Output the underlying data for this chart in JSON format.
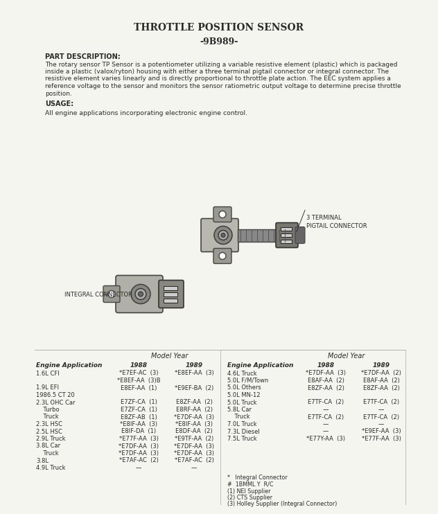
{
  "title": "THROTTLE POSITION SENSOR",
  "subtitle": "-9B989-",
  "part_desc_header": "PART DESCRIPTION:",
  "part_desc_text": "The rotary sensor TP Sensor is a potentiometer utilizing a variable resistive element (plastic) which is packaged\ninside a plastic (valox/ryton) housing with either a three terminal pigtail connector or integral connector. The\nresistive element varies linearly and is directly proportional to throttle plate action. The EEC system applies a\nreference voltage to the sensor and monitors the sensor ratiometric output voltage to determine precise throttle\nposition.",
  "usage_header": "USAGE:",
  "usage_text": "All engine applications incorporating electronic engine control.",
  "label_pigtail": "3 TERMINAL\nPIGTAIL CONNECTOR",
  "label_integral": "INTEGRAL CONNECTOR",
  "table_header": "Model Year",
  "col1_header": "Engine Application",
  "col2_header": "1988",
  "col3_header": "1989",
  "left_table_data": [
    [
      "1.6L CFI",
      "*E7EF-AC  (3)",
      "*E8EF-AA  (3)"
    ],
    [
      "",
      "*E8EF-AA  (3)B",
      ""
    ],
    [
      "1.9L EFI",
      "E8EF-AA  (1)",
      "*E9EF-BA  (2)"
    ],
    [
      "1986.5 CT 20",
      "",
      ""
    ],
    [
      "2.3L OHC Car",
      "E7ZF-CA  (1)",
      "E8ZF-AA  (2)"
    ],
    [
      "    Turbo",
      "E7ZF-CA  (1)",
      "E8RF-AA  (2)"
    ],
    [
      "    Truck",
      "E8ZF-AB  (1)",
      "*E7DF-AA  (3)"
    ],
    [
      "2.3L HSC",
      "*E8IF-AA  (3)",
      "*E8IF-AA  (3)"
    ],
    [
      "2.5L HSC",
      "E8IF-DA  (1)",
      "E8DF-AA  (2)"
    ],
    [
      "2.9L Truck",
      "*E77F-AA  (3)",
      "*E9TF-AA  (2)"
    ],
    [
      "3.8L Car",
      "*E7DF-AA  (3)",
      "*E7DF-AA  (3)"
    ],
    [
      "    Truck",
      "*E7DF-AA  (3)",
      "*E7DF-AA  (3)"
    ],
    [
      "3.8L",
      "*E7AF-AC  (2)",
      "*E7AF-AC  (2)"
    ],
    [
      "4.9L Truck",
      "—",
      "—"
    ]
  ],
  "right_table_data": [
    [
      "4.6L Truck",
      "*E7DF-AA  (3)",
      "*E7DF-AA  (2)"
    ],
    [
      "5.0L F/M/Town",
      "E8AF-AA  (2)",
      "E8AF-AA  (2)"
    ],
    [
      "5.0L Others",
      "E8ZF-AA  (2)",
      "E8ZF-AA  (2)"
    ],
    [
      "5.0L MN-12",
      "",
      ""
    ],
    [
      "5.0L Truck",
      "E7TF-CA  (2)",
      "E7TF-CA  (2)"
    ],
    [
      "5.8L Car",
      "—",
      "—"
    ],
    [
      "    Truck",
      "E7TF-CA  (2)",
      "E7TF-CA  (2)"
    ],
    [
      "7.0L Truck",
      "—",
      "—"
    ],
    [
      "7.3L Diesel",
      "—",
      "*E9EF-AA  (3)"
    ],
    [
      "7.5L Truck",
      "*E77Y-AA  (3)",
      "*E77F-AA  (3)"
    ]
  ],
  "footnotes": [
    "*   Integral Connector",
    "#  1BMML Y  R/C",
    "(1) NEl Supplier",
    "(2) CTS Supplier",
    "(3) Holley Supplier (Integral Connector)"
  ],
  "bg_color": "#f5f5f0",
  "text_color": "#2a2a2a",
  "border_color": "#888888"
}
